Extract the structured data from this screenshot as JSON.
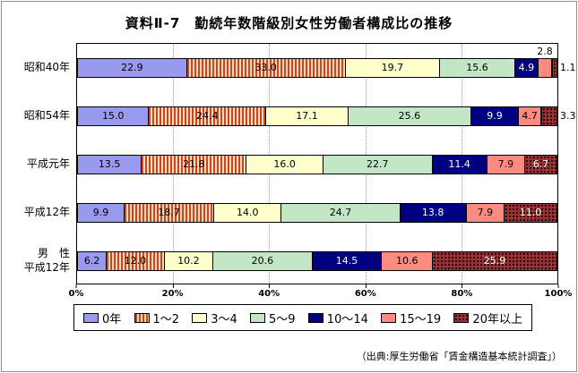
{
  "title": "資料Ⅱ-7　勤続年数階級別女性労働者構成比の推移",
  "source": "（出典:厚生労働省「賃金構造基本統計調査」）",
  "chart_data": {
    "type": "bar",
    "orientation": "horizontal",
    "stacked": true,
    "unit": "%",
    "xlim": [
      0,
      100
    ],
    "grid": true,
    "grid_positions": [
      20,
      40,
      60,
      80
    ],
    "x_ticks": [
      "0%",
      "20%",
      "40%",
      "60%",
      "80%",
      "100%"
    ],
    "legend_position": "bottom",
    "categories": [
      "昭和40年",
      "昭和54年",
      "平成元年",
      "平成12年",
      "男　性\n平成12年"
    ],
    "series": [
      {
        "name": "0年",
        "color": "#9999ee",
        "values": [
          22.9,
          15.0,
          13.5,
          9.9,
          6.2
        ]
      },
      {
        "name": "1〜2",
        "color": "#ffddbb",
        "pattern": "vstripes",
        "pattern_color": "#cc4422",
        "values": [
          33.0,
          24.4,
          21.8,
          18.7,
          12.0
        ]
      },
      {
        "name": "3〜4",
        "color": "#ffffcc",
        "values": [
          19.7,
          17.1,
          16.0,
          14.0,
          10.2
        ]
      },
      {
        "name": "5〜9",
        "color": "#c2e6c6",
        "values": [
          15.6,
          25.6,
          22.7,
          24.7,
          20.6
        ]
      },
      {
        "name": "10〜14",
        "color": "#000080",
        "text_color": "#ffffff",
        "values": [
          4.9,
          9.9,
          11.4,
          13.8,
          14.5
        ]
      },
      {
        "name": "15〜19",
        "color": "#ff8a80",
        "values": [
          2.8,
          4.7,
          7.9,
          7.9,
          10.6
        ]
      },
      {
        "name": "20年以上",
        "color": "#993333",
        "pattern": "dots",
        "pattern_color": "#220000",
        "text_color": "#ffffff",
        "values": [
          1.1,
          3.3,
          6.7,
          11.0,
          25.9
        ]
      }
    ]
  }
}
